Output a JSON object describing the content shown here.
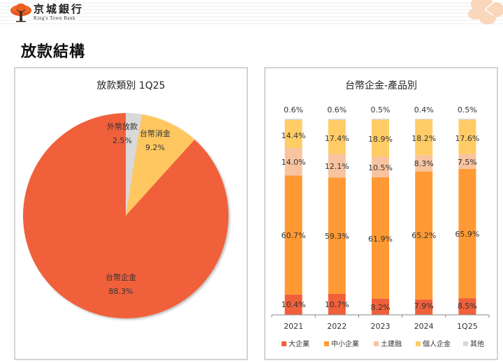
{
  "header": {
    "logo_cn": "京城銀行",
    "logo_en": "King's Town Bank",
    "logo_icon": "tree-icon",
    "decoration_icon": "flower-icon"
  },
  "page": {
    "title": "放款結構"
  },
  "colors": {
    "large_enterprise": "#F0603A",
    "sme": "#FF9933",
    "construction": "#F8C4A0",
    "personal": "#FFCC66",
    "other": "#D9D9D9",
    "pie_corporate": "#F0603A",
    "pie_consumer": "#FFC75F",
    "pie_foreign": "#D9D9D9"
  },
  "chart_data": [
    {
      "type": "pie",
      "title": "放款類別 1Q25",
      "slices": [
        {
          "label": "外幣放款",
          "value": 2.5,
          "display": "2.5%",
          "color": "#D9D9D9"
        },
        {
          "label": "台幣消金",
          "value": 9.2,
          "display": "9.2%",
          "color": "#FFC75F"
        },
        {
          "label": "台幣企金",
          "value": 88.3,
          "display": "88.3%",
          "color": "#F0603A"
        }
      ]
    },
    {
      "type": "bar",
      "stacked": true,
      "percent": true,
      "title": "台幣企金-產品別",
      "categories": [
        "2021",
        "2022",
        "2023",
        "2024",
        "1Q25"
      ],
      "series": [
        {
          "name": "大企業",
          "color": "#F0603A",
          "values": [
            10.4,
            10.7,
            8.2,
            7.9,
            8.5
          ]
        },
        {
          "name": "中小企業",
          "color": "#FF9933",
          "values": [
            60.7,
            59.3,
            61.9,
            65.2,
            65.9
          ]
        },
        {
          "name": "土建融",
          "color": "#F8C4A0",
          "values": [
            14.0,
            12.1,
            10.5,
            8.3,
            7.5
          ]
        },
        {
          "name": "個人企金",
          "color": "#FFCC66",
          "values": [
            14.4,
            17.4,
            18.9,
            18.2,
            17.6
          ]
        },
        {
          "name": "其他",
          "color": "#D9D9D9",
          "values": [
            0.6,
            0.6,
            0.5,
            0.4,
            0.5
          ]
        }
      ],
      "labels": {
        "大企業": [
          "10.4%",
          "10.7%",
          "8.2%",
          "7.9%",
          "8.5%"
        ],
        "中小企業": [
          "60.7%",
          "59.3%",
          "61.9%",
          "65.2%",
          "65.9%"
        ],
        "土建融": [
          "14.0%",
          "12.1%",
          "10.5%",
          "8.3%",
          "7.5%"
        ],
        "個人企金": [
          "14.4%",
          "17.4%",
          "18.9%",
          "18.2%",
          "17.6%"
        ],
        "其他": [
          "0.6%",
          "0.6%",
          "0.5%",
          "0.4%",
          "0.5%"
        ]
      },
      "legend_position": "bottom",
      "xlabel": "",
      "ylabel": "",
      "ylim": [
        0,
        100
      ],
      "grid": false
    }
  ]
}
